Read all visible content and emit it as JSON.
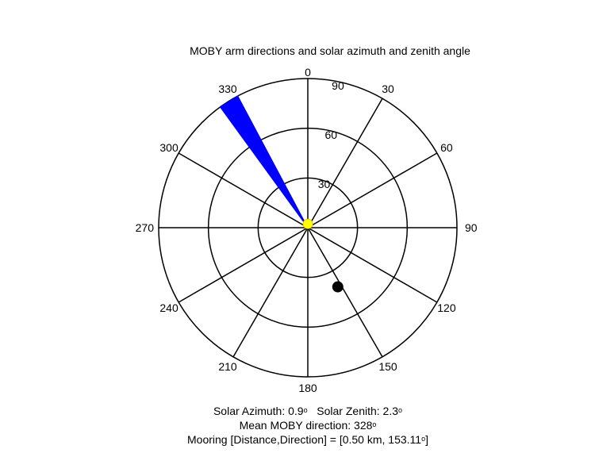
{
  "chart_data": {
    "type": "polar",
    "title": "MOBY arm directions and solar azimuth and zenith angle",
    "theta_direction": "clockwise",
    "theta_zero": "north",
    "r_max": 90,
    "r_ticks": [
      30,
      60,
      90
    ],
    "theta_ticks": [
      0,
      30,
      60,
      90,
      120,
      150,
      180,
      210,
      240,
      270,
      300,
      330
    ],
    "grid": true,
    "series": [
      {
        "marker": "wedge",
        "theta_start": 324,
        "theta_end": 332,
        "r": 90,
        "color": "#0000ff"
      },
      {
        "marker": "filled-circle",
        "theta": 153.11,
        "r": 40,
        "color": "#000000"
      },
      {
        "marker": "filled-circle",
        "theta": 0.9,
        "r": 2.3,
        "color": "#ffff00"
      }
    ]
  },
  "info": {
    "solar_azimuth_label": "Solar Azimuth: 0.9",
    "solar_zenith_label": "Solar Zenith: 2.3",
    "mean_direction_label": "Mean MOBY direction: 328",
    "mooring_label_prefix": "Mooring [Distance,Direction] = [0.50 km, 153.11",
    "mooring_label_suffix": "]",
    "degree_symbol": "o"
  }
}
